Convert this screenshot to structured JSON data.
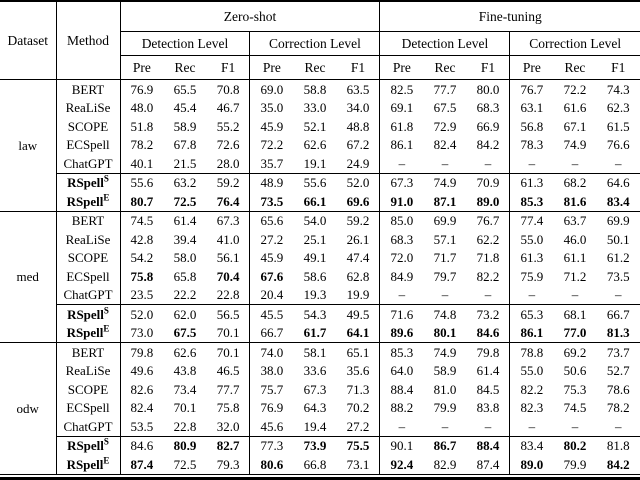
{
  "header": {
    "dataset": "Dataset",
    "method": "Method",
    "zero_shot": "Zero-shot",
    "fine_tuning": "Fine-tuning",
    "detection": "Detection Level",
    "correction": "Correction Level",
    "metrics": [
      "Pre",
      "Rec",
      "F1"
    ]
  },
  "chart_data": {
    "type": "table",
    "title": "Spelling correction results by dataset, method, setting (Zero-shot / Fine-tuning), level (Detection / Correction) and metric (Pre / Rec / F1)"
  },
  "groups": [
    {
      "dataset": "law",
      "baseline_rows": [
        {
          "method": "BERT",
          "values": [
            "76.9",
            "65.5",
            "70.8",
            "69.0",
            "58.8",
            "63.5",
            "82.5",
            "77.7",
            "80.0",
            "76.7",
            "72.2",
            "74.3"
          ],
          "bold": []
        },
        {
          "method": "ReaLiSe",
          "values": [
            "48.0",
            "45.4",
            "46.7",
            "35.0",
            "33.0",
            "34.0",
            "69.1",
            "67.5",
            "68.3",
            "63.1",
            "61.6",
            "62.3"
          ],
          "bold": []
        },
        {
          "method": "SCOPE",
          "values": [
            "51.8",
            "58.9",
            "55.2",
            "45.9",
            "52.1",
            "48.8",
            "61.8",
            "72.9",
            "66.9",
            "56.8",
            "67.1",
            "61.5"
          ],
          "bold": []
        },
        {
          "method": "ECSpell",
          "values": [
            "78.2",
            "67.8",
            "72.6",
            "72.2",
            "62.6",
            "67.2",
            "86.1",
            "82.4",
            "84.2",
            "78.3",
            "74.9",
            "76.6"
          ],
          "bold": []
        },
        {
          "method": "ChatGPT",
          "values": [
            "40.1",
            "21.5",
            "28.0",
            "35.7",
            "19.1",
            "24.9",
            "–",
            "–",
            "–",
            "–",
            "–",
            "–"
          ],
          "bold": []
        }
      ],
      "rspell_rows": [
        {
          "method": "RSpell",
          "sup": "S",
          "values": [
            "55.6",
            "63.2",
            "59.2",
            "48.9",
            "55.6",
            "52.0",
            "67.3",
            "74.9",
            "70.9",
            "61.3",
            "68.2",
            "64.6"
          ],
          "bold": []
        },
        {
          "method": "RSpell",
          "sup": "E",
          "values": [
            "80.7",
            "72.5",
            "76.4",
            "73.5",
            "66.1",
            "69.6",
            "91.0",
            "87.1",
            "89.0",
            "85.3",
            "81.6",
            "83.4"
          ],
          "bold": [
            0,
            1,
            2,
            3,
            4,
            5,
            6,
            7,
            8,
            9,
            10,
            11
          ]
        }
      ]
    },
    {
      "dataset": "med",
      "baseline_rows": [
        {
          "method": "BERT",
          "values": [
            "74.5",
            "61.4",
            "67.3",
            "65.6",
            "54.0",
            "59.2",
            "85.0",
            "69.9",
            "76.7",
            "77.4",
            "63.7",
            "69.9"
          ],
          "bold": []
        },
        {
          "method": "ReaLiSe",
          "values": [
            "42.8",
            "39.4",
            "41.0",
            "27.2",
            "25.1",
            "26.1",
            "68.3",
            "57.1",
            "62.2",
            "55.0",
            "46.0",
            "50.1"
          ],
          "bold": []
        },
        {
          "method": "SCOPE",
          "values": [
            "54.2",
            "58.0",
            "56.1",
            "45.9",
            "49.1",
            "47.4",
            "72.0",
            "71.7",
            "71.8",
            "61.3",
            "61.1",
            "61.2"
          ],
          "bold": []
        },
        {
          "method": "ECSpell",
          "values": [
            "75.8",
            "65.8",
            "70.4",
            "67.6",
            "58.6",
            "62.8",
            "84.9",
            "79.7",
            "82.2",
            "75.9",
            "71.2",
            "73.5"
          ],
          "bold": [
            0,
            2,
            3
          ]
        },
        {
          "method": "ChatGPT",
          "values": [
            "23.5",
            "22.2",
            "22.8",
            "20.4",
            "19.3",
            "19.9",
            "–",
            "–",
            "–",
            "–",
            "–",
            "–"
          ],
          "bold": []
        }
      ],
      "rspell_rows": [
        {
          "method": "RSpell",
          "sup": "S",
          "values": [
            "52.0",
            "62.0",
            "56.5",
            "45.5",
            "54.3",
            "49.5",
            "71.6",
            "74.8",
            "73.2",
            "65.3",
            "68.1",
            "66.7"
          ],
          "bold": []
        },
        {
          "method": "RSpell",
          "sup": "E",
          "values": [
            "73.0",
            "67.5",
            "70.1",
            "66.7",
            "61.7",
            "64.1",
            "89.6",
            "80.1",
            "84.6",
            "86.1",
            "77.0",
            "81.3"
          ],
          "bold": [
            1,
            4,
            5,
            6,
            7,
            8,
            9,
            10,
            11
          ]
        }
      ]
    },
    {
      "dataset": "odw",
      "baseline_rows": [
        {
          "method": "BERT",
          "values": [
            "79.8",
            "62.6",
            "70.1",
            "74.0",
            "58.1",
            "65.1",
            "85.3",
            "74.9",
            "79.8",
            "78.8",
            "69.2",
            "73.7"
          ],
          "bold": []
        },
        {
          "method": "ReaLiSe",
          "values": [
            "49.6",
            "43.8",
            "46.5",
            "38.0",
            "33.6",
            "35.6",
            "64.0",
            "58.9",
            "61.4",
            "55.0",
            "50.6",
            "52.7"
          ],
          "bold": []
        },
        {
          "method": "SCOPE",
          "values": [
            "82.6",
            "73.4",
            "77.7",
            "75.7",
            "67.3",
            "71.3",
            "88.4",
            "81.0",
            "84.5",
            "82.2",
            "75.3",
            "78.6"
          ],
          "bold": []
        },
        {
          "method": "ECSpell",
          "values": [
            "82.4",
            "70.1",
            "75.8",
            "76.9",
            "64.3",
            "70.2",
            "88.2",
            "79.9",
            "83.8",
            "82.3",
            "74.5",
            "78.2"
          ],
          "bold": []
        },
        {
          "method": "ChatGPT",
          "values": [
            "53.5",
            "22.8",
            "32.0",
            "45.6",
            "19.4",
            "27.2",
            "–",
            "–",
            "–",
            "–",
            "–",
            "–"
          ],
          "bold": []
        }
      ],
      "rspell_rows": [
        {
          "method": "RSpell",
          "sup": "S",
          "values": [
            "84.6",
            "80.9",
            "82.7",
            "77.3",
            "73.9",
            "75.5",
            "90.1",
            "86.7",
            "88.4",
            "83.4",
            "80.2",
            "81.8"
          ],
          "bold": [
            1,
            2,
            4,
            5,
            7,
            8,
            10
          ]
        },
        {
          "method": "RSpell",
          "sup": "E",
          "values": [
            "87.4",
            "72.5",
            "79.3",
            "80.6",
            "66.8",
            "73.1",
            "92.4",
            "82.9",
            "87.4",
            "89.0",
            "79.9",
            "84.2"
          ],
          "bold": [
            0,
            3,
            6,
            9,
            11
          ]
        }
      ]
    }
  ]
}
